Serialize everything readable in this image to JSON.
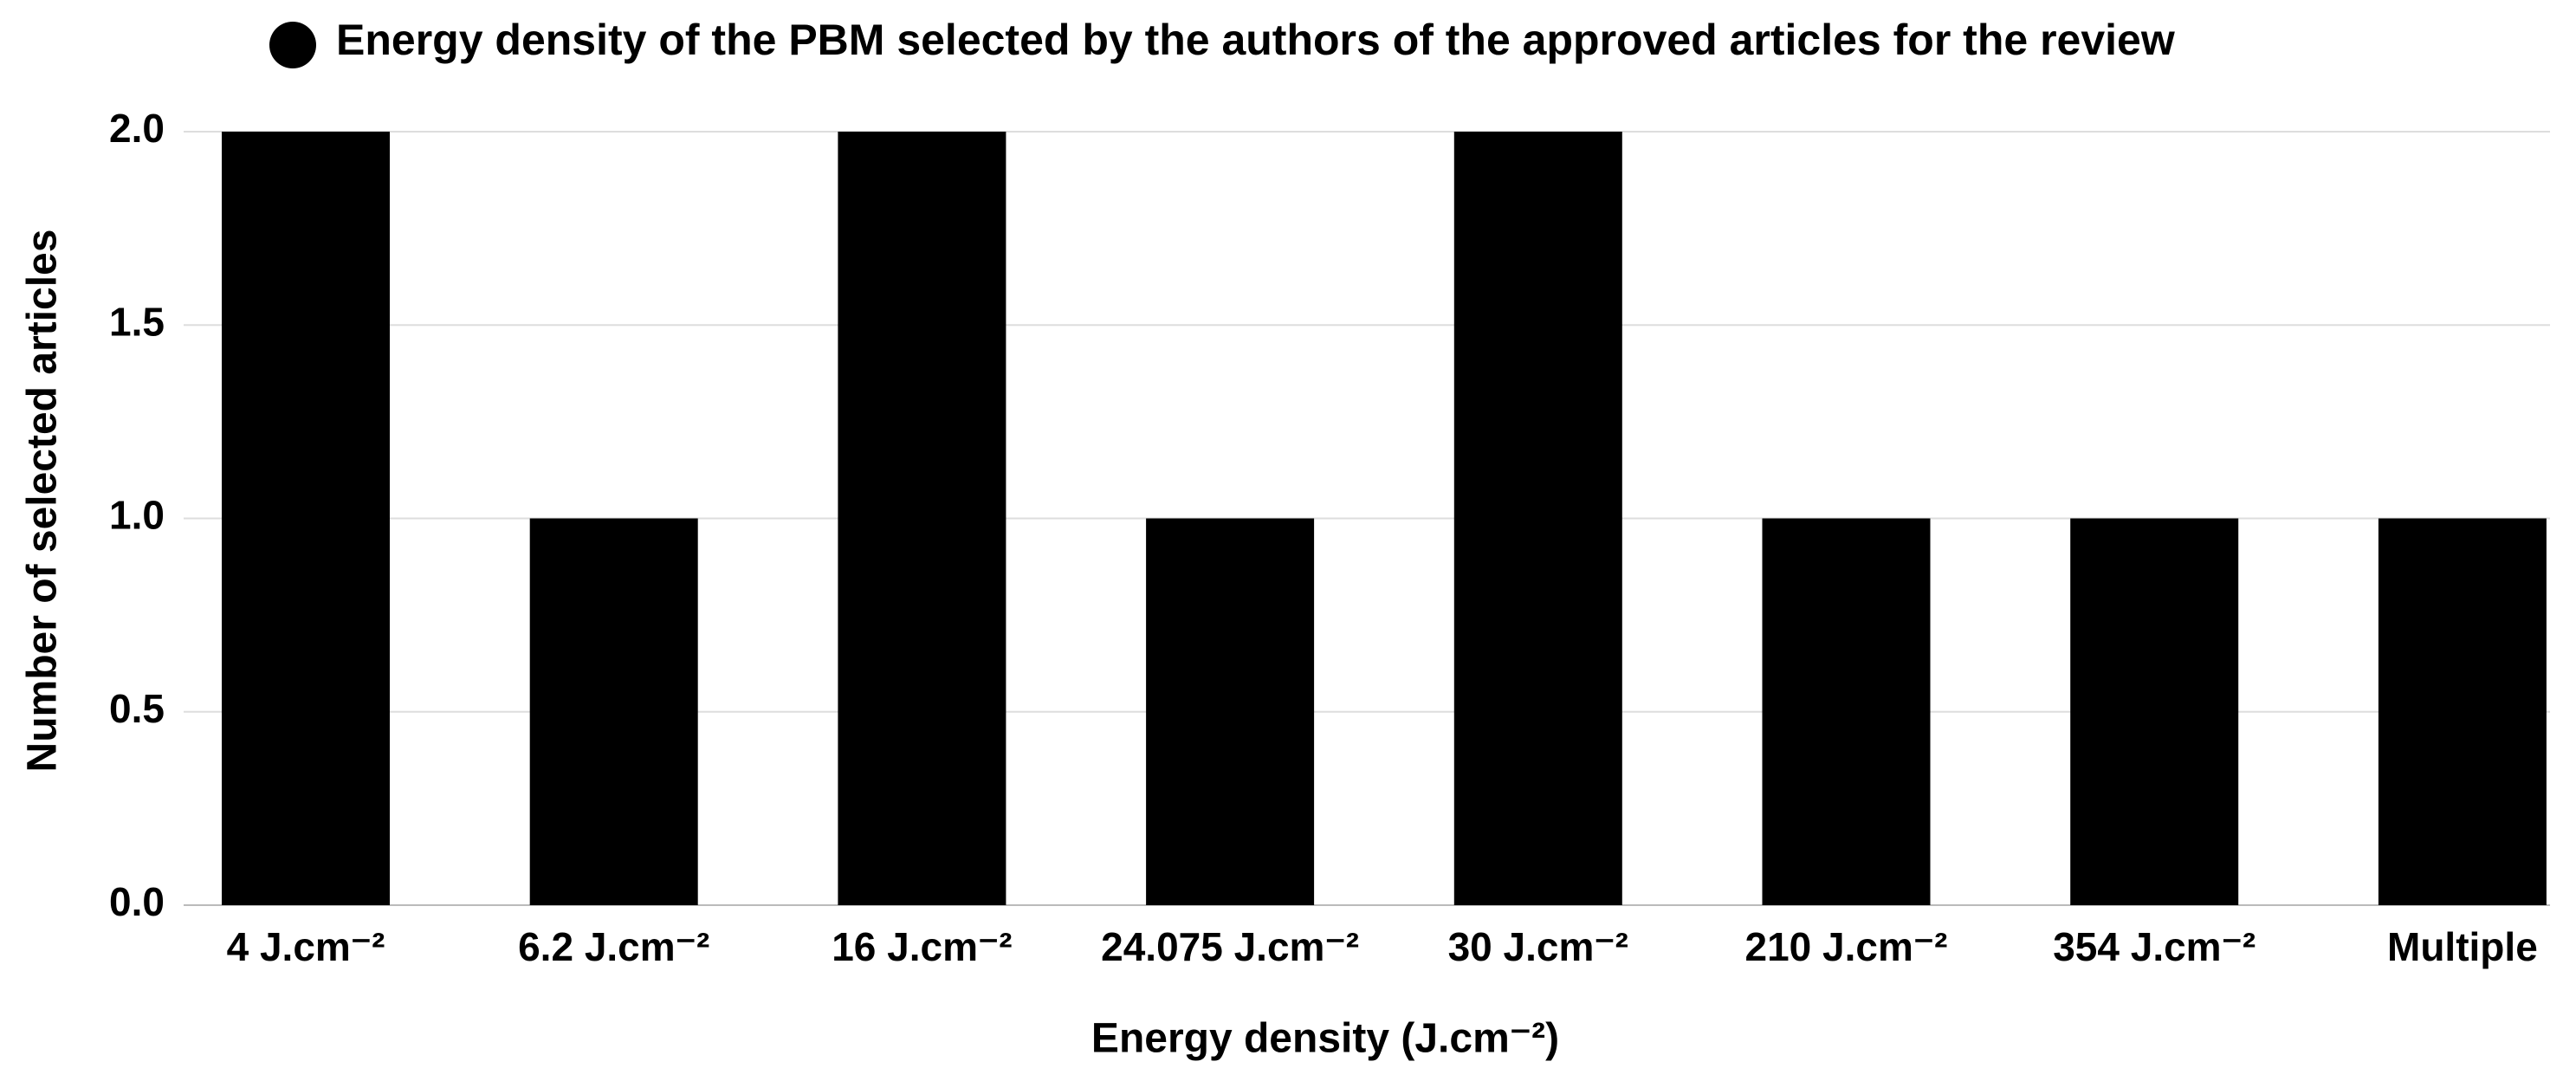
{
  "chart_data": {
    "type": "bar",
    "series": [
      {
        "name": "Energy density of the PBM selected by the authors of the approved articles for the review",
        "color": "#000000",
        "values": [
          2,
          1,
          2,
          1,
          2,
          1,
          1,
          1
        ]
      }
    ],
    "categories": [
      "4 J.cm⁻²",
      "6.2 J.cm⁻²",
      "16 J.cm⁻²",
      "24.075 J.cm⁻²",
      "30 J.cm⁻²",
      "210 J.cm⁻²",
      "354 J.cm⁻²",
      "Multiple"
    ],
    "xlabel": "Energy density (J.cm⁻²)",
    "ylabel": "Number of selected articles",
    "ylim": [
      0,
      2
    ],
    "yticks": [
      {
        "value": 0,
        "label": "0.0"
      },
      0.5,
      {
        "value": 1,
        "label": "1.0"
      },
      1.5,
      {
        "value": 2,
        "label": "2.0"
      }
    ],
    "grid": true,
    "legend": "top"
  }
}
